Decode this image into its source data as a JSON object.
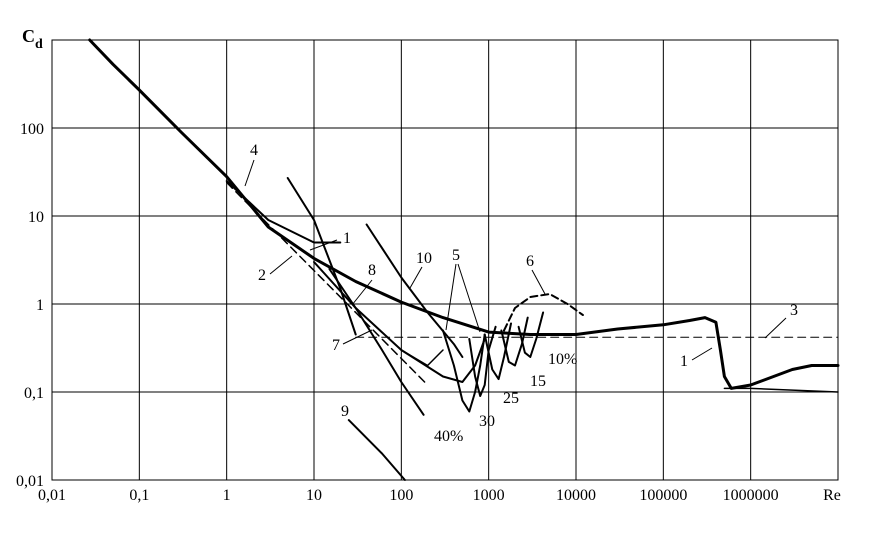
{
  "chart_data": {
    "type": "line",
    "title": "",
    "xlabel": "Re",
    "ylabel": "Cd",
    "ylabel_main": "C",
    "ylabel_sub": "d",
    "x_scale": "log",
    "y_scale": "log",
    "xlim": [
      0.01,
      10000000
    ],
    "ylim": [
      0.01,
      1000
    ],
    "grid": true,
    "x_ticks": [
      "0,01",
      "0,1",
      "1",
      "10",
      "100",
      "1000",
      "10000",
      "100000",
      "1000000",
      "Re"
    ],
    "x_tick_values": [
      0.01,
      0.1,
      1,
      10,
      100,
      1000,
      10000,
      100000,
      1000000
    ],
    "y_ticks": [
      "0,01",
      "0,1",
      "1",
      "10",
      "100"
    ],
    "y_tick_values": [
      0.01,
      0.1,
      1,
      10,
      100
    ],
    "series": [
      {
        "id": "1",
        "style": "solid",
        "width": 3,
        "points": [
          [
            0.027,
            1000
          ],
          [
            0.05,
            530
          ],
          [
            0.1,
            270
          ],
          [
            0.3,
            90
          ],
          [
            1,
            28
          ],
          [
            3,
            7.5
          ],
          [
            10,
            3.3
          ],
          [
            30,
            1.8
          ],
          [
            100,
            1.05
          ],
          [
            300,
            0.7
          ],
          [
            1000,
            0.48
          ],
          [
            3000,
            0.45
          ],
          [
            10000,
            0.45
          ],
          [
            30000,
            0.52
          ],
          [
            100000,
            0.58
          ],
          [
            200000,
            0.65
          ],
          [
            300000,
            0.7
          ],
          [
            400000,
            0.62
          ],
          [
            450000,
            0.3
          ],
          [
            500000,
            0.15
          ],
          [
            600000,
            0.11
          ],
          [
            1000000,
            0.12
          ],
          [
            3000000,
            0.18
          ],
          [
            5000000,
            0.2
          ],
          [
            10000000,
            0.2
          ]
        ]
      },
      {
        "id": "1",
        "style": "solid",
        "width": 1.5,
        "points": [
          [
            500000,
            0.11
          ],
          [
            1000000,
            0.11
          ],
          [
            3000000,
            0.105
          ],
          [
            10000000,
            0.1
          ]
        ]
      },
      {
        "id": "2",
        "style": "dashed",
        "width": 1.5,
        "points": [
          [
            1,
            24
          ],
          [
            3,
            8
          ],
          [
            10,
            2.4
          ],
          [
            30,
            0.8
          ],
          [
            100,
            0.24
          ],
          [
            200,
            0.12
          ]
        ]
      },
      {
        "id": "3",
        "style": "dashed",
        "width": 1,
        "points": [
          [
            30,
            0.42
          ],
          [
            10000000,
            0.42
          ]
        ]
      },
      {
        "id": "4",
        "style": "solid",
        "width": 2,
        "points": [
          [
            1,
            25
          ],
          [
            3,
            9
          ],
          [
            10,
            5
          ],
          [
            20,
            5
          ]
        ]
      },
      {
        "id": "5",
        "style": "solid",
        "width": 2,
        "points": [
          [
            10,
            3
          ],
          [
            30,
            0.9
          ],
          [
            100,
            0.3
          ],
          [
            300,
            0.15
          ],
          [
            500,
            0.13
          ],
          [
            700,
            0.2
          ],
          [
            900,
            0.4
          ]
        ]
      },
      {
        "id": "6",
        "style": "dashed",
        "width": 2,
        "points": [
          [
            1500,
            0.5
          ],
          [
            2000,
            0.9
          ],
          [
            3000,
            1.2
          ],
          [
            5000,
            1.3
          ],
          [
            8000,
            1.0
          ],
          [
            12000,
            0.75
          ]
        ]
      },
      {
        "id": "7",
        "style": "solid",
        "width": 1.5,
        "points": [
          [
            10,
            3
          ],
          [
            30,
            0.9
          ],
          [
            100,
            0.3
          ],
          [
            200,
            0.2
          ],
          [
            300,
            0.3
          ]
        ]
      },
      {
        "id": "8",
        "style": "solid",
        "width": 2,
        "points": [
          [
            15,
            2.5
          ],
          [
            30,
            0.9
          ],
          [
            60,
            0.3
          ],
          [
            100,
            0.13
          ],
          [
            180,
            0.055
          ]
        ]
      },
      {
        "id": "9",
        "style": "solid",
        "width": 2,
        "points": [
          [
            25,
            0.048
          ],
          [
            60,
            0.02
          ],
          [
            110,
            0.01
          ]
        ]
      },
      {
        "id": "10",
        "style": "solid",
        "width": 2,
        "points": [
          [
            5,
            27
          ],
          [
            10,
            9
          ],
          [
            20,
            1.5
          ],
          [
            30,
            0.45
          ]
        ]
      },
      {
        "id": "10",
        "style": "solid",
        "width": 2,
        "points": [
          [
            40,
            8
          ],
          [
            100,
            2
          ],
          [
            200,
            0.8
          ],
          [
            400,
            0.35
          ],
          [
            500,
            0.25
          ]
        ]
      },
      {
        "id": "40%",
        "style": "solid",
        "width": 2,
        "points": [
          [
            300,
            0.5
          ],
          [
            400,
            0.2
          ],
          [
            500,
            0.08
          ],
          [
            600,
            0.06
          ],
          [
            700,
            0.1
          ],
          [
            800,
            0.2
          ],
          [
            900,
            0.45
          ]
        ]
      },
      {
        "id": "30",
        "style": "solid",
        "width": 2,
        "points": [
          [
            600,
            0.4
          ],
          [
            700,
            0.15
          ],
          [
            800,
            0.09
          ],
          [
            900,
            0.12
          ],
          [
            1000,
            0.3
          ],
          [
            1200,
            0.55
          ]
        ]
      },
      {
        "id": "25",
        "style": "solid",
        "width": 2,
        "points": [
          [
            900,
            0.45
          ],
          [
            1100,
            0.18
          ],
          [
            1300,
            0.14
          ],
          [
            1500,
            0.25
          ],
          [
            1800,
            0.6
          ]
        ]
      },
      {
        "id": "15",
        "style": "solid",
        "width": 2,
        "points": [
          [
            1400,
            0.5
          ],
          [
            1700,
            0.22
          ],
          [
            2000,
            0.2
          ],
          [
            2400,
            0.35
          ],
          [
            2800,
            0.7
          ]
        ]
      },
      {
        "id": "10%",
        "style": "solid",
        "width": 2,
        "points": [
          [
            2200,
            0.55
          ],
          [
            2600,
            0.28
          ],
          [
            3000,
            0.25
          ],
          [
            3500,
            0.4
          ],
          [
            4200,
            0.8
          ]
        ]
      }
    ],
    "annotations": [
      "1",
      "2",
      "3",
      "4",
      "5",
      "6",
      "7",
      "8",
      "9",
      "10",
      "1",
      "10%",
      "15",
      "25",
      "30",
      "40%"
    ]
  }
}
